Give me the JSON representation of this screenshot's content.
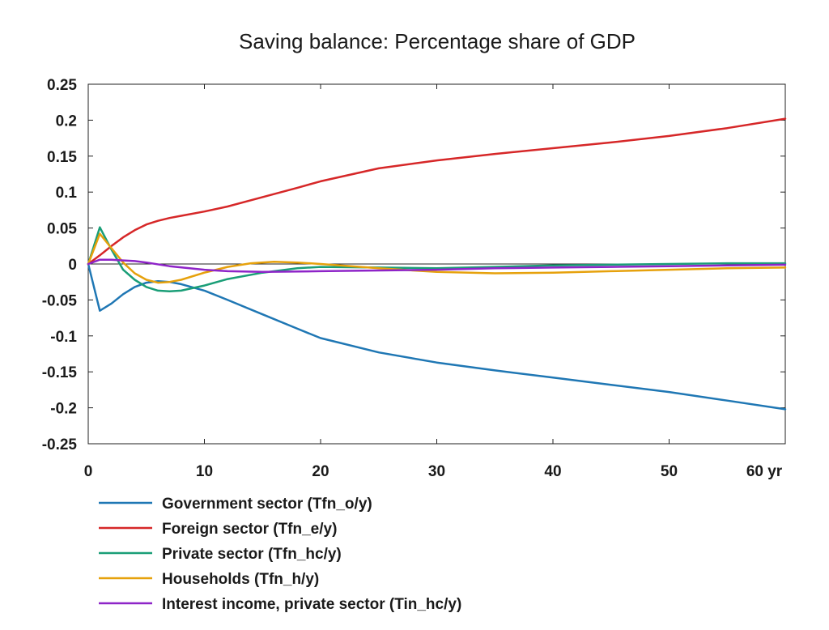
{
  "chart_data": {
    "type": "line",
    "title": "Saving balance: Percentage share of GDP",
    "xlabel": "yr",
    "ylabel": "",
    "xlim": [
      0,
      60
    ],
    "ylim": [
      -0.25,
      0.25
    ],
    "x_ticks": [
      0,
      10,
      20,
      30,
      40,
      50,
      60
    ],
    "x_tick_labels": [
      "0",
      "10",
      "20",
      "30",
      "40",
      "50",
      "60 yr"
    ],
    "y_ticks": [
      0.25,
      0.2,
      0.15,
      0.1,
      0.05,
      0,
      -0.05,
      -0.1,
      -0.15,
      -0.2,
      -0.25
    ],
    "y_tick_labels": [
      "0.25",
      "0.2",
      "0.15",
      "0.1",
      "0.05",
      "0",
      "-0.05",
      "-0.1",
      "-0.15",
      "-0.2",
      "-0.25"
    ],
    "grid": false,
    "zero_line": true,
    "legend_position": "bottom",
    "series": [
      {
        "name": "Government sector (Tfn_o/y)",
        "color": "#1f77b4",
        "points": [
          [
            0,
            0
          ],
          [
            1,
            -0.065
          ],
          [
            2,
            -0.055
          ],
          [
            3,
            -0.042
          ],
          [
            4,
            -0.032
          ],
          [
            5,
            -0.026
          ],
          [
            6,
            -0.024
          ],
          [
            7,
            -0.025
          ],
          [
            8,
            -0.028
          ],
          [
            10,
            -0.037
          ],
          [
            12,
            -0.05
          ],
          [
            15,
            -0.07
          ],
          [
            18,
            -0.09
          ],
          [
            20,
            -0.103
          ],
          [
            25,
            -0.123
          ],
          [
            30,
            -0.137
          ],
          [
            35,
            -0.148
          ],
          [
            40,
            -0.158
          ],
          [
            45,
            -0.168
          ],
          [
            50,
            -0.178
          ],
          [
            55,
            -0.19
          ],
          [
            60,
            -0.202
          ]
        ]
      },
      {
        "name": "Foreign sector (Tfn_e/y)",
        "color": "#d62728",
        "points": [
          [
            0,
            0
          ],
          [
            1,
            0.012
          ],
          [
            2,
            0.025
          ],
          [
            3,
            0.037
          ],
          [
            4,
            0.047
          ],
          [
            5,
            0.055
          ],
          [
            6,
            0.06
          ],
          [
            7,
            0.064
          ],
          [
            8,
            0.067
          ],
          [
            10,
            0.073
          ],
          [
            12,
            0.08
          ],
          [
            15,
            0.093
          ],
          [
            18,
            0.106
          ],
          [
            20,
            0.115
          ],
          [
            25,
            0.133
          ],
          [
            30,
            0.144
          ],
          [
            35,
            0.153
          ],
          [
            40,
            0.161
          ],
          [
            45,
            0.169
          ],
          [
            50,
            0.178
          ],
          [
            55,
            0.189
          ],
          [
            60,
            0.202
          ]
        ]
      },
      {
        "name": "Private sector (Tfn_hc/y)",
        "color": "#1a9e77",
        "points": [
          [
            0,
            0
          ],
          [
            1,
            0.051
          ],
          [
            2,
            0.02
          ],
          [
            3,
            -0.008
          ],
          [
            4,
            -0.022
          ],
          [
            5,
            -0.032
          ],
          [
            6,
            -0.037
          ],
          [
            7,
            -0.038
          ],
          [
            8,
            -0.037
          ],
          [
            10,
            -0.03
          ],
          [
            12,
            -0.021
          ],
          [
            15,
            -0.012
          ],
          [
            18,
            -0.006
          ],
          [
            20,
            -0.004
          ],
          [
            25,
            -0.005
          ],
          [
            30,
            -0.006
          ],
          [
            35,
            -0.004
          ],
          [
            40,
            -0.002
          ],
          [
            45,
            -0.001
          ],
          [
            50,
            0
          ],
          [
            55,
            0.001
          ],
          [
            60,
            0.001
          ]
        ]
      },
      {
        "name": "Households (Tfn_h/y)",
        "color": "#e6a10c",
        "points": [
          [
            0,
            0
          ],
          [
            1,
            0.042
          ],
          [
            2,
            0.022
          ],
          [
            3,
            0.002
          ],
          [
            4,
            -0.013
          ],
          [
            5,
            -0.022
          ],
          [
            6,
            -0.026
          ],
          [
            7,
            -0.025
          ],
          [
            8,
            -0.022
          ],
          [
            10,
            -0.012
          ],
          [
            12,
            -0.004
          ],
          [
            14,
            0.001
          ],
          [
            16,
            0.003
          ],
          [
            18,
            0.002
          ],
          [
            20,
            0
          ],
          [
            25,
            -0.006
          ],
          [
            30,
            -0.011
          ],
          [
            35,
            -0.013
          ],
          [
            40,
            -0.012
          ],
          [
            45,
            -0.01
          ],
          [
            50,
            -0.008
          ],
          [
            55,
            -0.006
          ],
          [
            60,
            -0.005
          ]
        ]
      },
      {
        "name": "Interest income, private sector (Tin_hc/y)",
        "color": "#8e24c8",
        "points": [
          [
            0,
            0
          ],
          [
            1,
            0.006
          ],
          [
            2,
            0.006
          ],
          [
            3,
            0.005
          ],
          [
            4,
            0.004
          ],
          [
            5,
            0.002
          ],
          [
            7,
            -0.003
          ],
          [
            10,
            -0.008
          ],
          [
            12,
            -0.01
          ],
          [
            15,
            -0.011
          ],
          [
            20,
            -0.01
          ],
          [
            25,
            -0.009
          ],
          [
            30,
            -0.008
          ],
          [
            35,
            -0.006
          ],
          [
            40,
            -0.005
          ],
          [
            45,
            -0.004
          ],
          [
            50,
            -0.003
          ],
          [
            55,
            -0.002
          ],
          [
            60,
            -0.001
          ]
        ]
      }
    ]
  }
}
